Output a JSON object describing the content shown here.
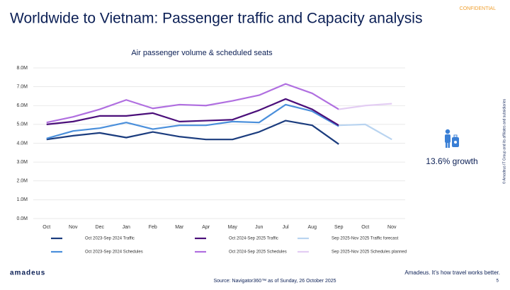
{
  "slide": {
    "title": "Worldwide to Vietnam: Passenger traffic and Capacity analysis",
    "confidential": "CONFIDENTIAL",
    "growth": "13.6% growth",
    "logo": "amadeus",
    "tagline": "Amadeus. It’s how travel works better.",
    "page_number": "5",
    "source": "Source: Navigator360™ as of Sunday, 26 October 2025",
    "copyright": "© Amadeus IT Group and its affiliates and subsidiaries"
  },
  "chart_data": {
    "type": "line",
    "title": "Air passenger volume & scheduled seats",
    "categories": [
      "Oct",
      "Nov",
      "Dec",
      "Jan",
      "Feb",
      "Mar",
      "Apr",
      "May",
      "Jun",
      "Jul",
      "Aug",
      "Sep",
      "Oct",
      "Nov"
    ],
    "ylim": [
      0,
      8000000
    ],
    "yticks": [
      {
        "value": 0,
        "label": "0.0M"
      },
      {
        "value": 1000000,
        "label": "1.0M"
      },
      {
        "value": 2000000,
        "label": "2.0M"
      },
      {
        "value": 3000000,
        "label": "3.0M"
      },
      {
        "value": 4000000,
        "label": "4.0M"
      },
      {
        "value": 5000000,
        "label": "5.0M"
      },
      {
        "value": 6000000,
        "label": "6.0M"
      },
      {
        "value": 7000000,
        "label": "7.0M"
      },
      {
        "value": 8000000,
        "label": "8.0M"
      }
    ],
    "grid": true,
    "series": [
      {
        "name": "Oct 2023-Sep 2024 Traffic",
        "color": "#1b3c7e",
        "values": [
          4200000,
          4400000,
          4550000,
          4300000,
          4600000,
          4350000,
          4200000,
          4200000,
          4600000,
          5200000,
          4950000,
          3950000,
          null,
          null
        ]
      },
      {
        "name": "Oct 2023-Sep 2024 Schedules",
        "color": "#4a8fdb",
        "values": [
          4250000,
          4650000,
          4800000,
          5100000,
          4750000,
          4950000,
          4950000,
          5150000,
          5100000,
          6050000,
          5700000,
          4900000,
          null,
          null
        ]
      },
      {
        "name": "Oct 2024-Sep 2025 Traffic",
        "color": "#4b0f7a",
        "values": [
          5000000,
          5150000,
          5450000,
          5450000,
          5600000,
          5150000,
          5200000,
          5250000,
          5750000,
          6350000,
          5800000,
          4950000,
          null,
          null
        ]
      },
      {
        "name": "Oct 2024-Sep 2025 Schedules",
        "color": "#b06fe0",
        "values": [
          5100000,
          5400000,
          5800000,
          6300000,
          5850000,
          6050000,
          6000000,
          6250000,
          6550000,
          7150000,
          6650000,
          5800000,
          null,
          null
        ]
      },
      {
        "name": "Sep 2025-Nov 2025 Traffic forecast",
        "color": "#b9d4f0",
        "values": [
          null,
          null,
          null,
          null,
          null,
          null,
          null,
          null,
          null,
          null,
          null,
          4950000,
          5000000,
          4200000
        ]
      },
      {
        "name": "Sep 2025-Nov 2025 Schedules planned",
        "color": "#e3cdf3",
        "values": [
          null,
          null,
          null,
          null,
          null,
          null,
          null,
          null,
          null,
          null,
          null,
          5800000,
          6000000,
          6100000
        ]
      }
    ]
  }
}
